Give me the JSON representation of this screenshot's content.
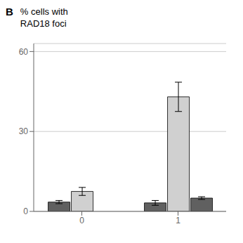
{
  "chart_data": {
    "type": "bar",
    "title": "% cells with",
    "subtitle": "RAD18 foci",
    "annotations": [
      "B"
    ],
    "categories": [
      "0",
      "1"
    ],
    "series": [
      {
        "color": "#606060",
        "values": [
          3.5,
          3.2
        ],
        "errors": [
          0.6,
          0.9
        ]
      },
      {
        "color": "#d0d0d0",
        "values": [
          7.5,
          43.0
        ],
        "errors": [
          1.5,
          5.5
        ]
      },
      {
        "color": "#606060",
        "values": [
          null,
          5.0
        ],
        "errors": [
          null,
          0.5
        ]
      }
    ],
    "ylim": [
      0,
      63
    ],
    "yticks": [
      0,
      30,
      60
    ],
    "grid": true
  }
}
